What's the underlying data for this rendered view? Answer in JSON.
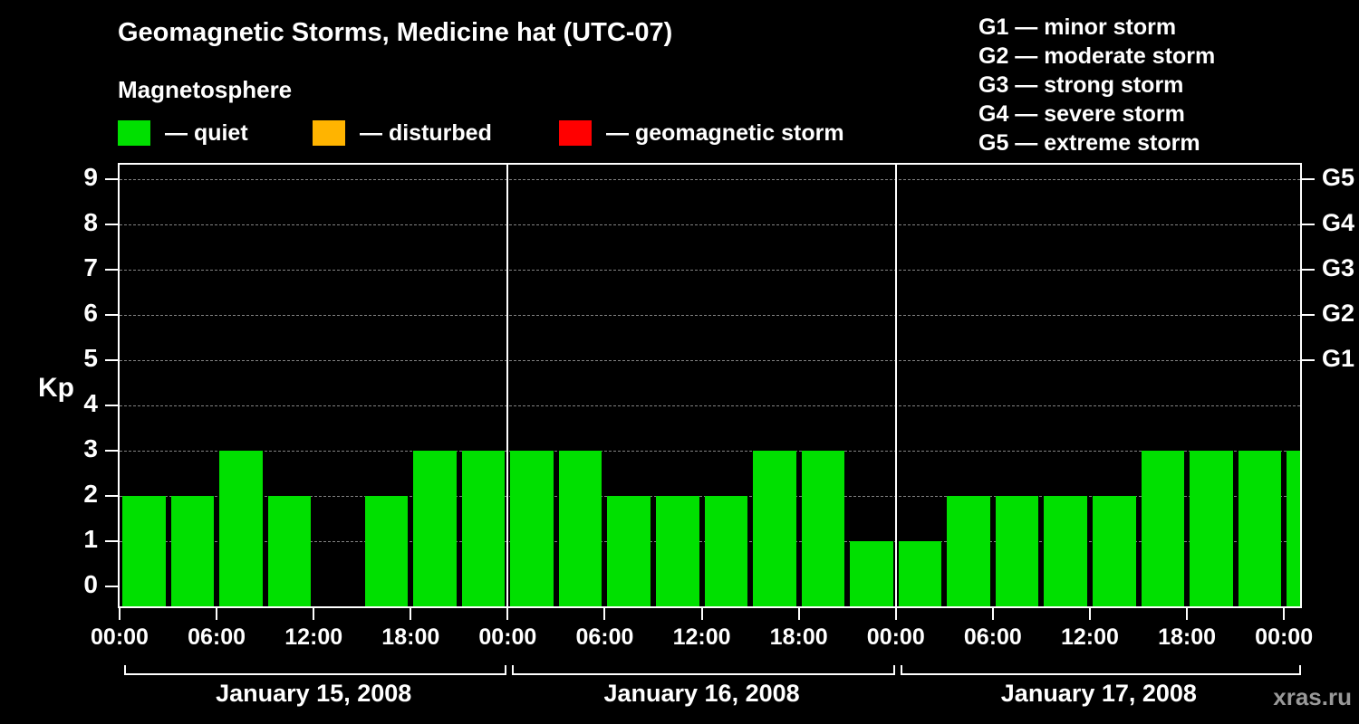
{
  "title": "Geomagnetic Storms, Medicine hat (UTC-07)",
  "subtitle": "Magnetosphere",
  "kp_axis_label": "Kp",
  "watermark": "xras.ru",
  "legend": {
    "quiet": {
      "label": "— quiet",
      "color": "#00e000"
    },
    "disturbed": {
      "label": "— disturbed",
      "color": "#ffb400"
    },
    "storm": {
      "label": "— geomagnetic storm",
      "color": "#ff0000"
    }
  },
  "storm_scale": {
    "g1": "G1 — minor storm",
    "g2": "G2 — moderate storm",
    "g3": "G3 — strong storm",
    "g4": "G4 — severe storm",
    "g5": "G5 — extreme storm"
  },
  "chart_data": {
    "type": "bar",
    "title": "Geomagnetic Storms, Medicine hat (UTC-07)",
    "xlabel": "",
    "ylabel": "Kp",
    "ylim": [
      0,
      9.5
    ],
    "grid": "dashed-horizontal",
    "yticks": [
      0,
      1,
      2,
      3,
      4,
      5,
      6,
      7,
      8,
      9
    ],
    "right_labels": [
      {
        "label": "G1",
        "kp": 5
      },
      {
        "label": "G2",
        "kp": 6
      },
      {
        "label": "G3",
        "kp": 7
      },
      {
        "label": "G4",
        "kp": 8
      },
      {
        "label": "G5",
        "kp": 9
      }
    ],
    "hours_span": 73,
    "interval_hours": 3,
    "bar_color": "#00e000",
    "x_tick_hours": [
      0,
      6,
      12,
      18,
      24,
      30,
      36,
      42,
      48,
      54,
      60,
      66,
      72
    ],
    "x_tick_labels": [
      "00:00",
      "06:00",
      "12:00",
      "18:00",
      "00:00",
      "06:00",
      "12:00",
      "18:00",
      "00:00",
      "06:00",
      "12:00",
      "18:00",
      "00:00"
    ],
    "days": [
      {
        "date": "January 15, 2008",
        "start_hour": 0,
        "kp_values": [
          2,
          2,
          3,
          2,
          null,
          2,
          3,
          3
        ]
      },
      {
        "date": "January 16, 2008",
        "start_hour": 24,
        "kp_values": [
          3,
          3,
          2,
          2,
          2,
          3,
          3,
          1
        ]
      },
      {
        "date": "January 17, 2008",
        "start_hour": 48,
        "kp_values": [
          1,
          2,
          2,
          2,
          2,
          3,
          3,
          3
        ]
      }
    ],
    "partial_bar": {
      "start_hour": 72,
      "kp": 3
    }
  }
}
